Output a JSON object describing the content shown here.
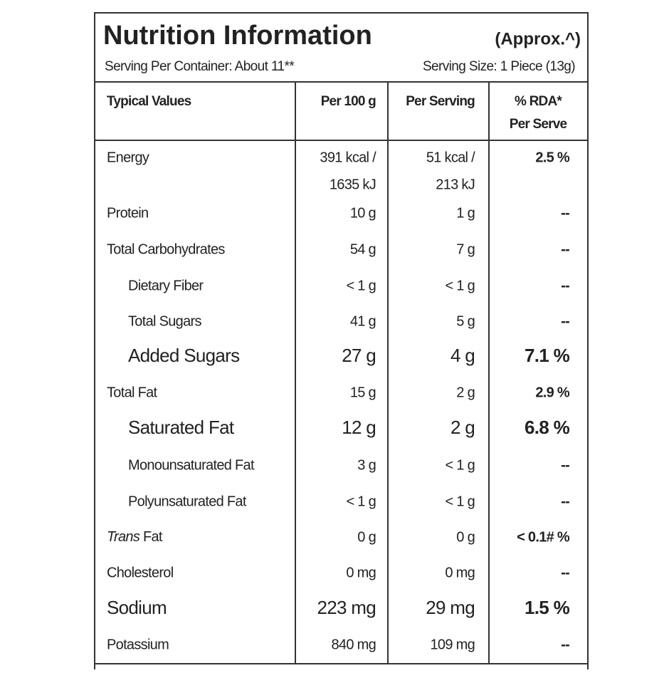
{
  "header": {
    "title": "Nutrition Information",
    "approx": "(Approx.^)",
    "serving_per_container": "Serving Per Container: About 11**",
    "serving_size": "Serving Size: 1 Piece (13g)"
  },
  "table": {
    "columns": [
      "Typical Values",
      "Per 100 g",
      "Per Serving",
      [
        "% RDA*",
        "Per Serve"
      ]
    ],
    "rows": [
      [
        "Energy",
        [
          "391 kcal /",
          "1635 kJ"
        ],
        [
          "51 kcal /",
          "213 kJ"
        ],
        "2.5 %"
      ],
      [
        "Protein",
        "10 g",
        "1 g",
        "--"
      ],
      [
        "Total Carbohydrates",
        "54 g",
        "7 g",
        "--"
      ],
      [
        "Dietary Fiber",
        "< 1 g",
        "< 1 g",
        "--"
      ],
      [
        "Total Sugars",
        "41 g",
        "5 g",
        "--"
      ],
      [
        "Added Sugars",
        "27 g",
        "4 g",
        "7.1 %"
      ],
      [
        "Total Fat",
        "15 g",
        "2 g",
        "2.9 %"
      ],
      [
        "Saturated Fat",
        "12 g",
        "2 g",
        "6.8 %"
      ],
      [
        "Monounsaturated Fat",
        "3 g",
        "< 1 g",
        "--"
      ],
      [
        "Polyunsaturated Fat",
        "< 1 g",
        "< 1 g",
        "--"
      ],
      [
        "Trans Fat",
        "0 g",
        "0 g",
        "< 0.1# %"
      ],
      [
        "Cholesterol",
        "0 mg",
        "0 mg",
        "--"
      ],
      [
        "Sodium",
        "223 mg",
        "29 mg",
        "1.5 %"
      ],
      [
        "Potassium",
        "840 mg",
        "109 mg",
        "--"
      ]
    ]
  }
}
